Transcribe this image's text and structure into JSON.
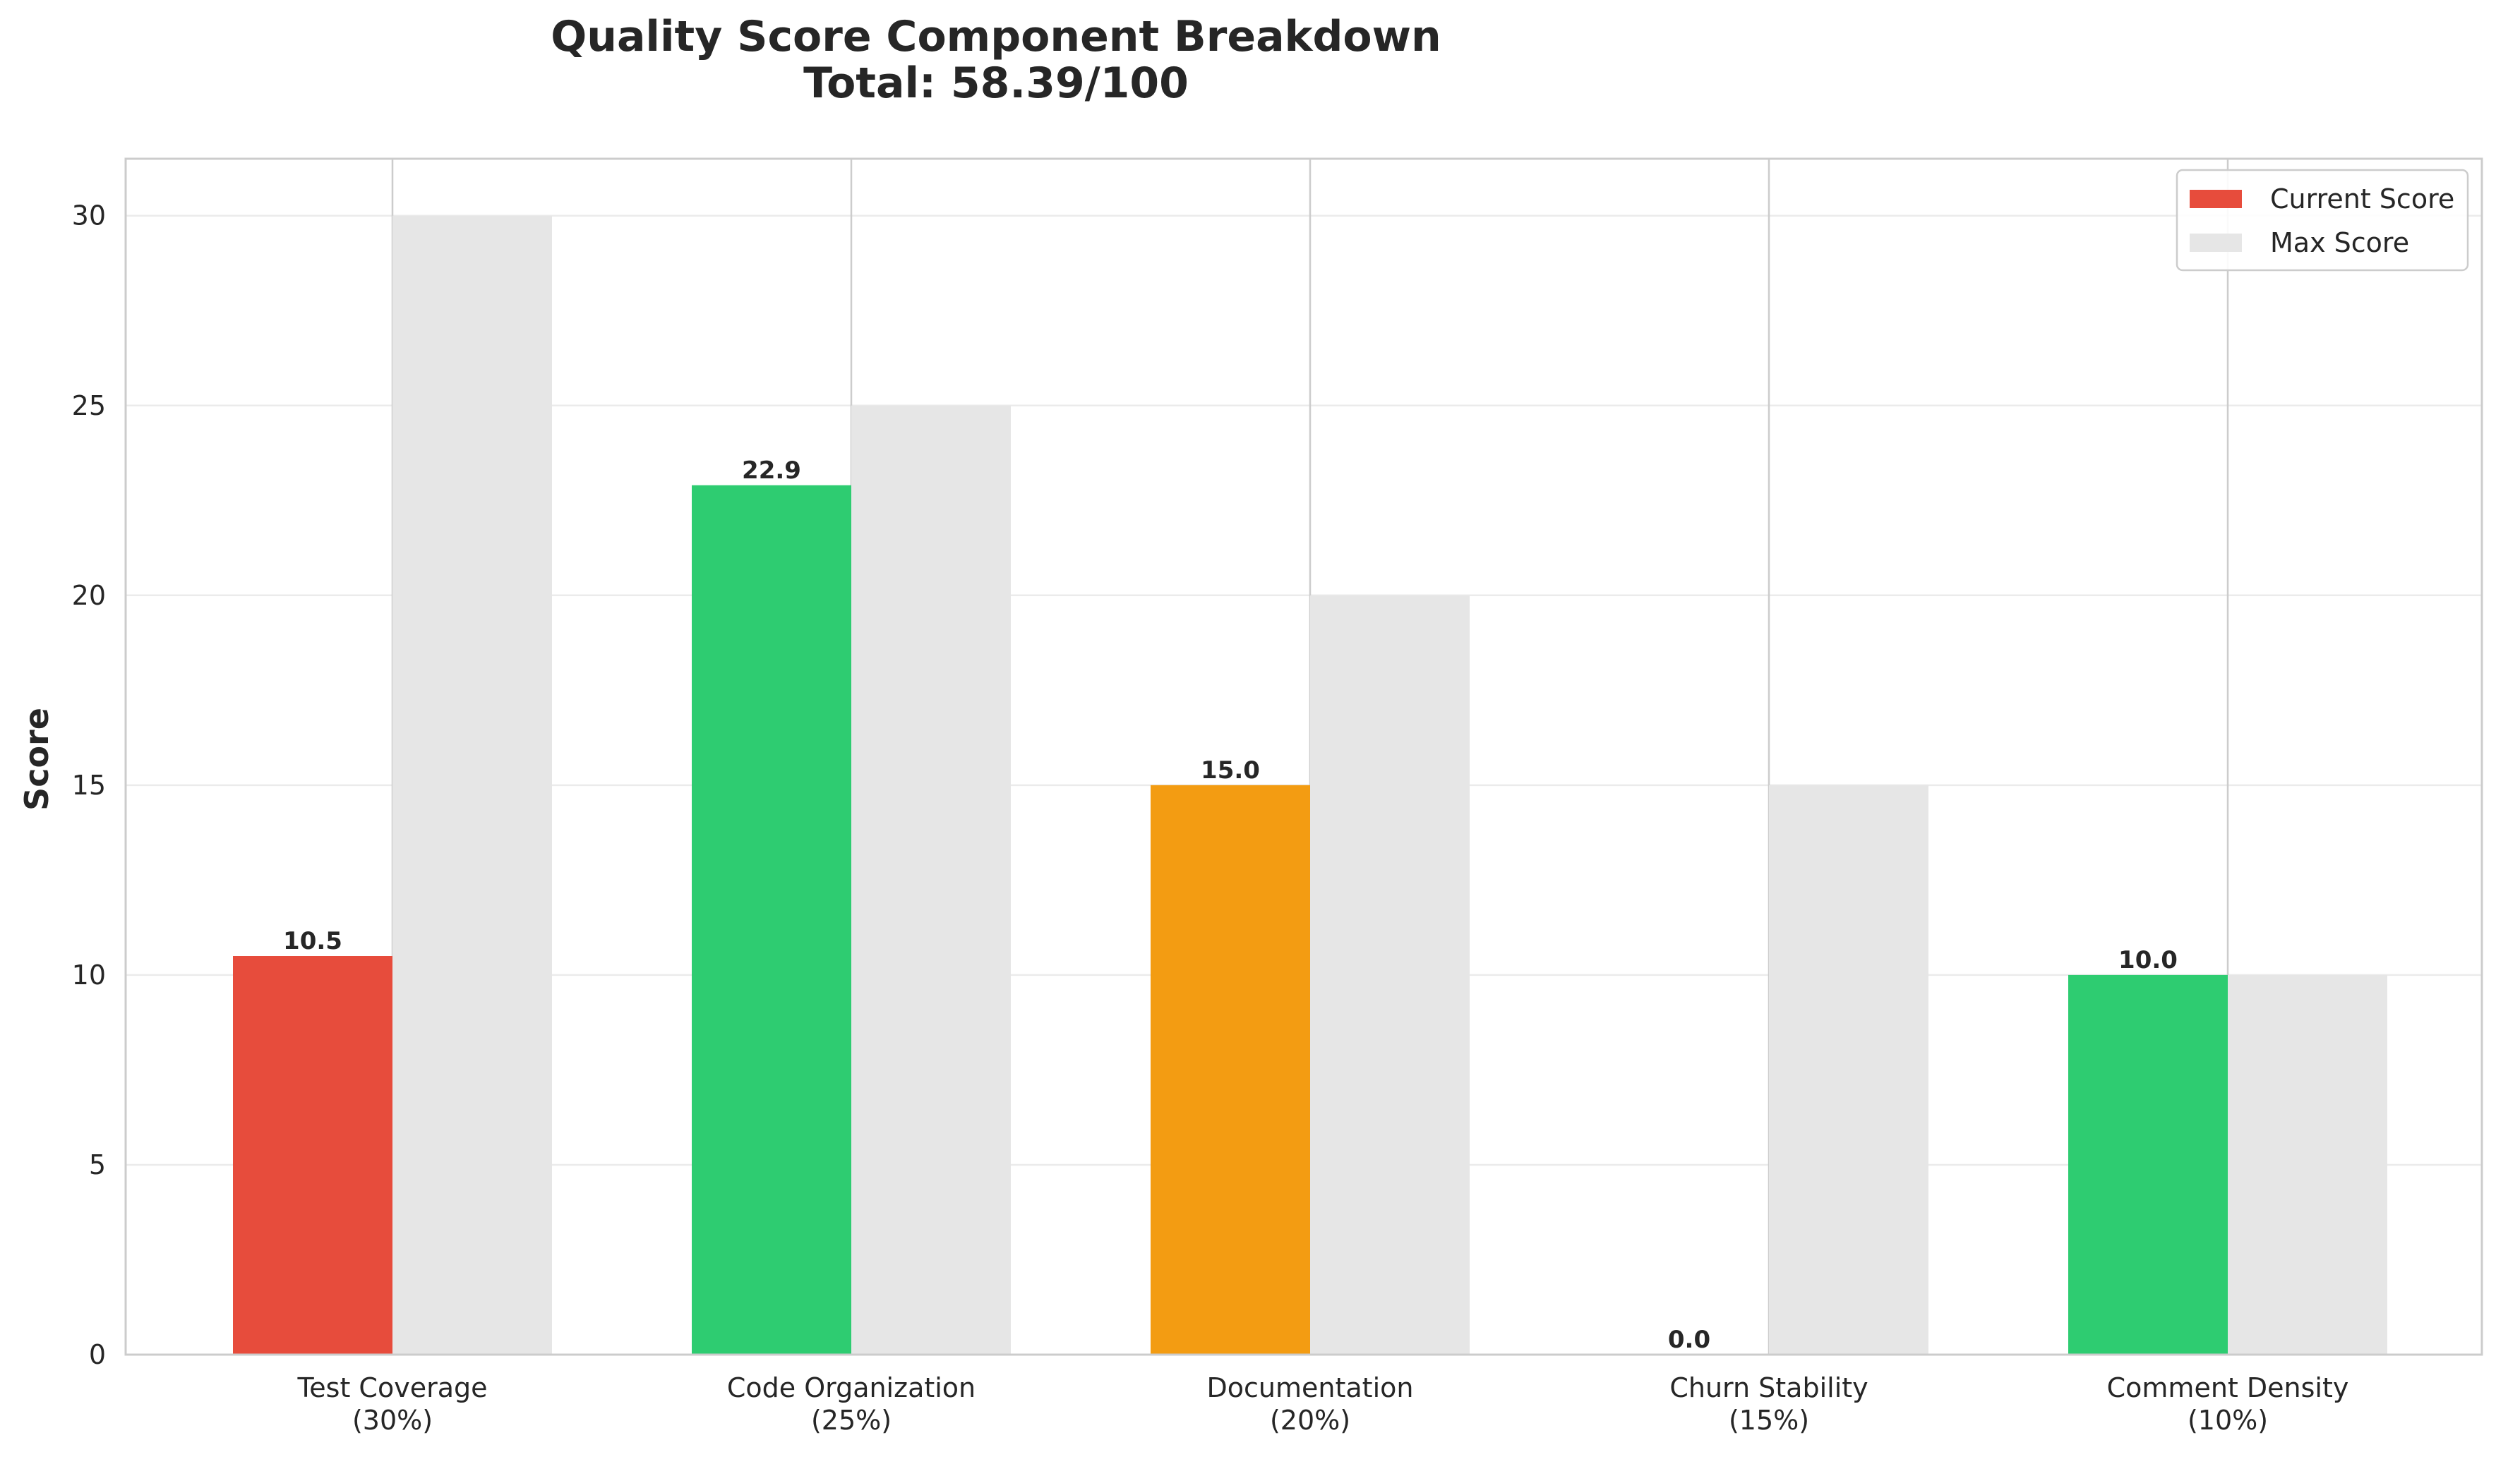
{
  "chart_data": {
    "type": "bar",
    "title": "Quality Score Component Breakdown",
    "subtitle": "Total: 58.39/100",
    "xlabel": "",
    "ylabel": "Score",
    "ylim": [
      0,
      31.5
    ],
    "yticks": [
      0,
      5,
      10,
      15,
      20,
      25,
      30
    ],
    "grid": true,
    "legend_placement": "top-right",
    "categories": [
      [
        "Test Coverage",
        "(30%)"
      ],
      [
        "Code Organization",
        "(25%)"
      ],
      [
        "Documentation",
        "(20%)"
      ],
      [
        "Churn Stability",
        "(15%)"
      ],
      [
        "Comment Density",
        "(10%)"
      ]
    ],
    "series": [
      {
        "name": "Current Score",
        "values": [
          10.5,
          22.9,
          15.0,
          0.0,
          10.0
        ],
        "value_labels": [
          "10.5",
          "22.9",
          "15.0",
          "0.0",
          "10.0"
        ],
        "colors": [
          "#e74c3c",
          "#2ecc71",
          "#f39c12",
          "#e74c3c",
          "#2ecc71"
        ],
        "legend_color": "#e74c3c"
      },
      {
        "name": "Max Score",
        "values": [
          30,
          25,
          20,
          15,
          10
        ],
        "color": "#e6e6e6"
      }
    ]
  }
}
